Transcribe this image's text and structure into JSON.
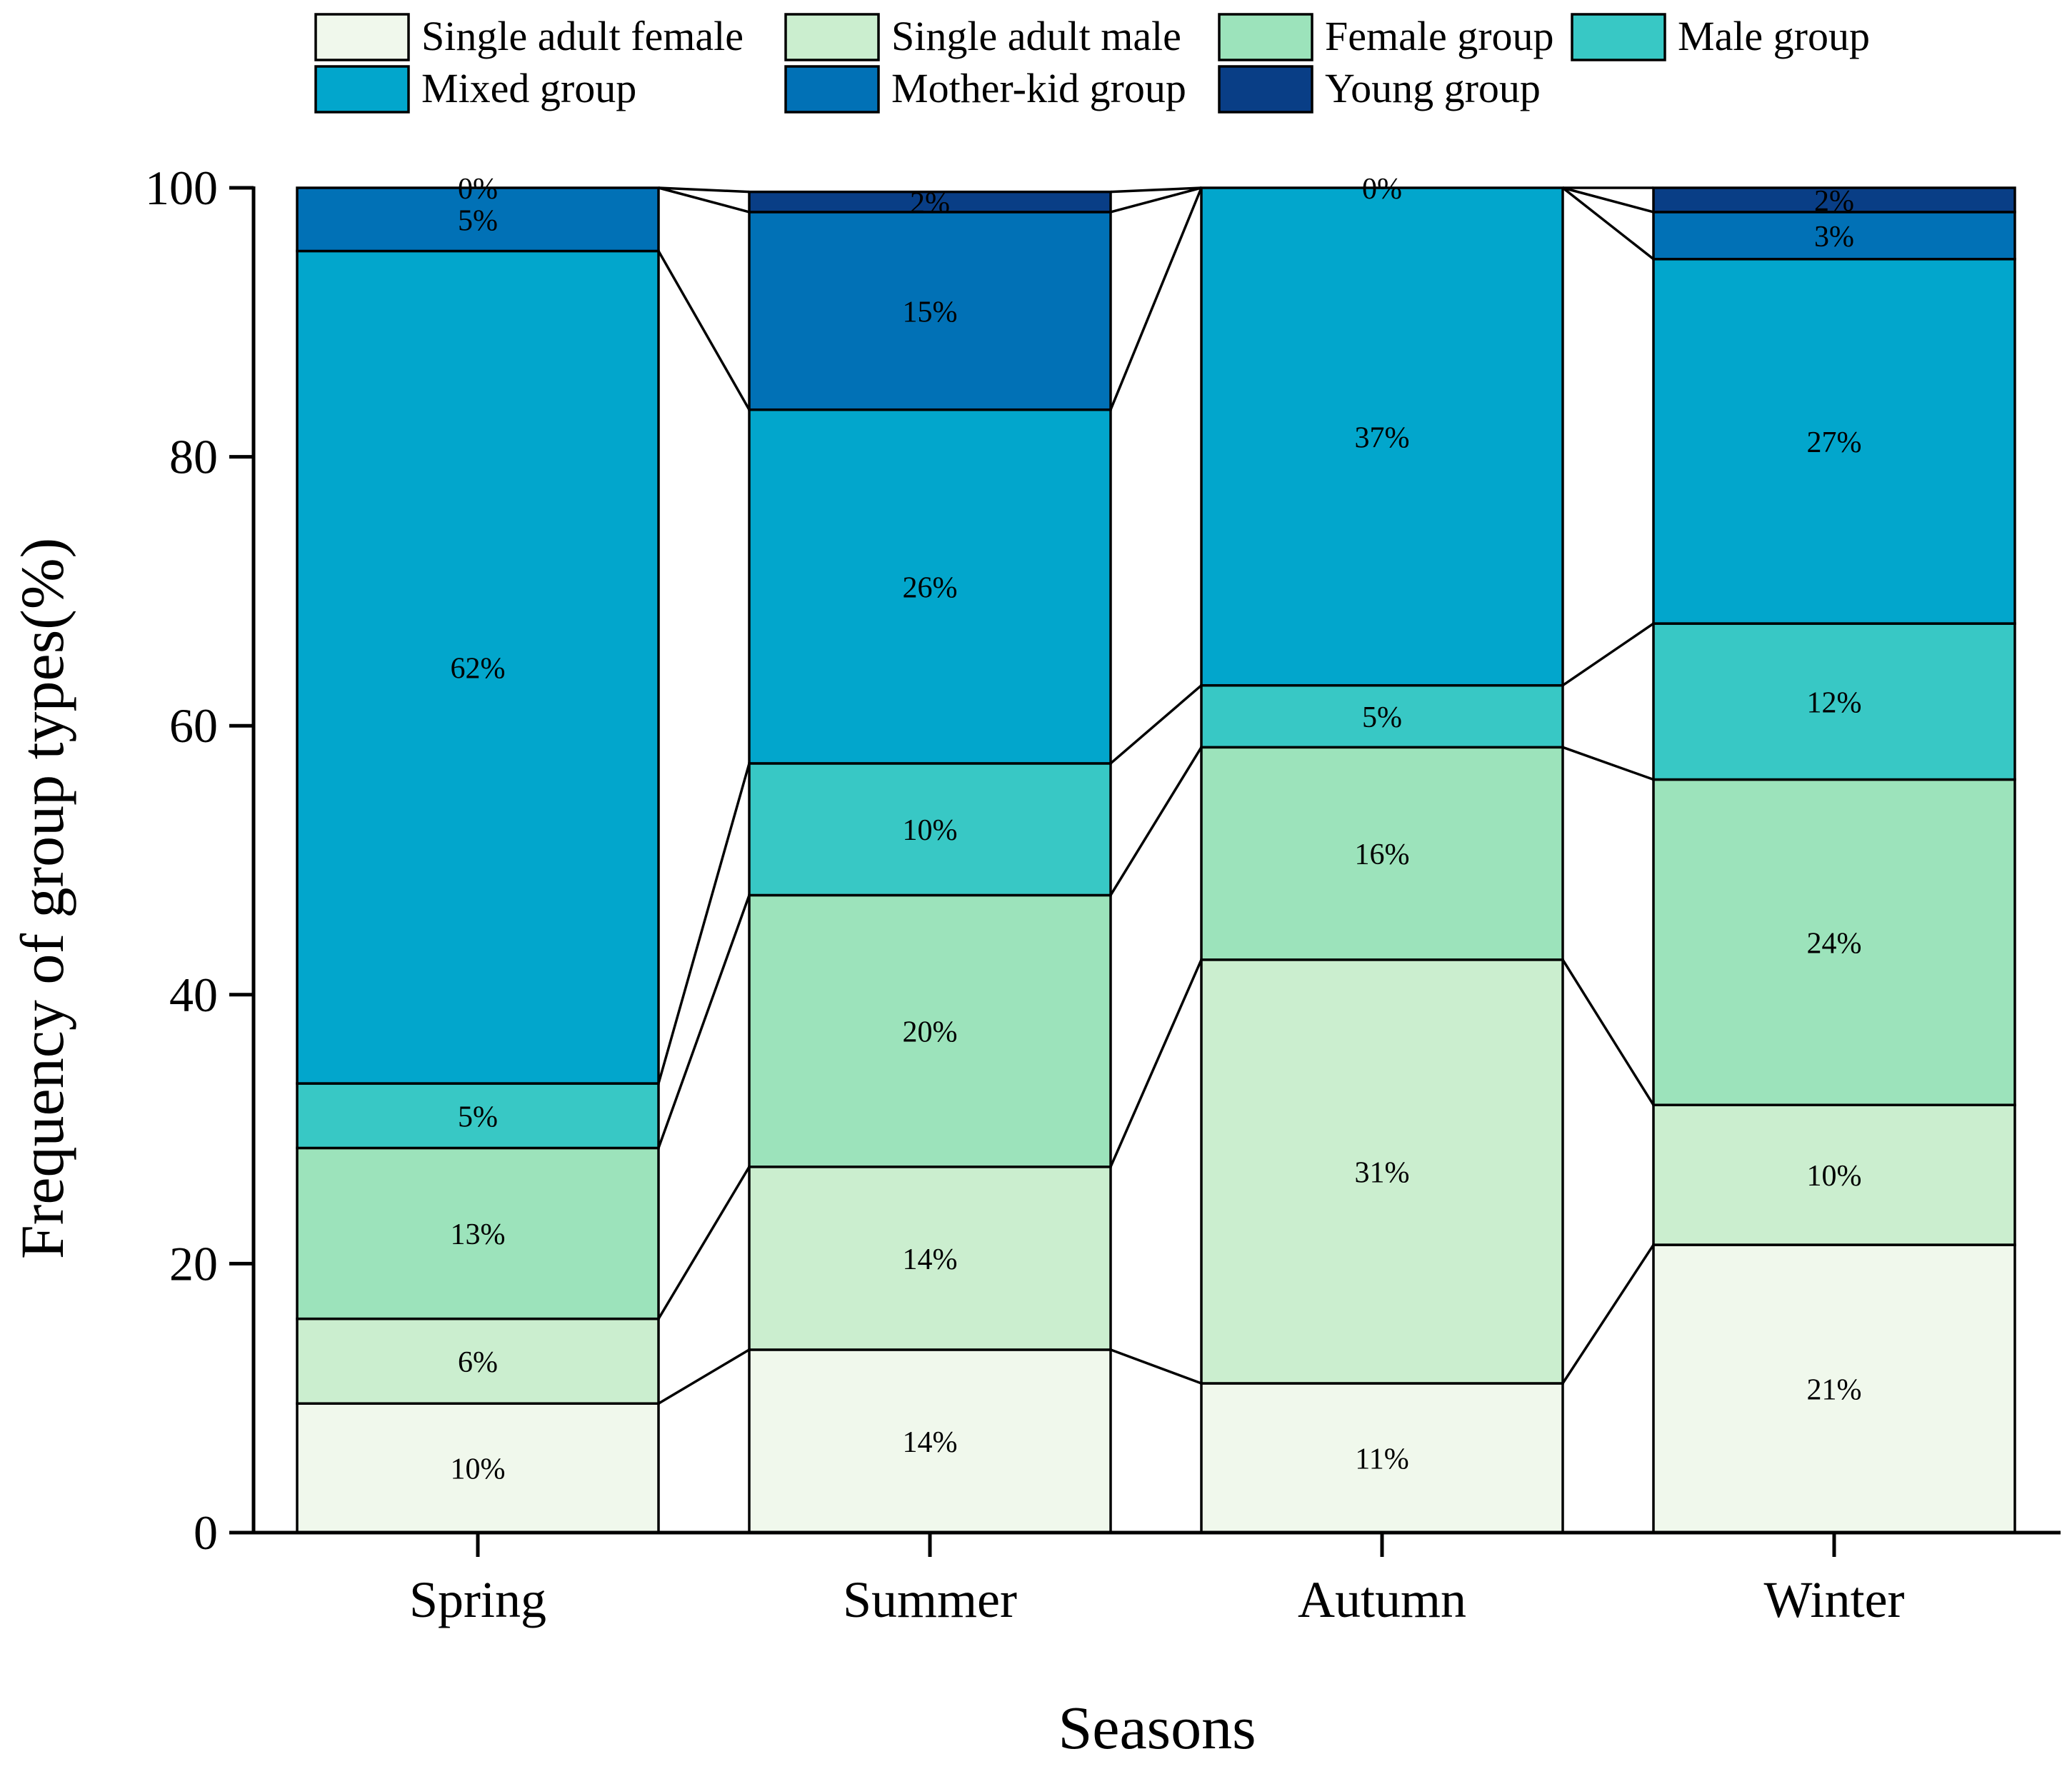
{
  "chart_data": {
    "type": "bar",
    "stacked": true,
    "title": "",
    "xlabel": "Seasons",
    "ylabel": "Frequency of group types(%)",
    "ylim": [
      0,
      100
    ],
    "yticks": [
      0,
      20,
      40,
      60,
      80,
      100
    ],
    "ytick_labels": [
      "0",
      "20",
      "40",
      "60",
      "80",
      "100"
    ],
    "categories": [
      "Spring",
      "Summer",
      "Autumn",
      "Winter"
    ],
    "grid": false,
    "legend_position": "top",
    "series": [
      {
        "name": "Single adult female",
        "color": "#f0f8ec",
        "values": [
          9.6,
          13.6,
          11.1,
          21.4
        ],
        "labels": [
          "10%",
          "14%",
          "11%",
          "21%"
        ]
      },
      {
        "name": "Single adult male",
        "color": "#cbeecf",
        "values": [
          6.3,
          13.6,
          31.5,
          10.4
        ],
        "labels": [
          "6%",
          "14%",
          "31%",
          "10%"
        ]
      },
      {
        "name": "Female group",
        "color": "#9ce3bb",
        "values": [
          12.7,
          20.2,
          15.8,
          24.2
        ],
        "labels": [
          "13%",
          "20%",
          "16%",
          "24%"
        ]
      },
      {
        "name": "Male group",
        "color": "#38c8c5",
        "values": [
          4.8,
          9.8,
          4.6,
          11.6
        ],
        "labels": [
          "5%",
          "10%",
          "5%",
          "12%"
        ]
      },
      {
        "name": "Mixed group",
        "color": "#02a6cc",
        "values": [
          61.9,
          26.3,
          37.0,
          27.1
        ],
        "labels": [
          "62%",
          "26%",
          "37%",
          "27%"
        ]
      },
      {
        "name": "Mother-kid group",
        "color": "#0171b6",
        "values": [
          4.7,
          14.7,
          0.0,
          3.5
        ],
        "labels": [
          "5%",
          "15%",
          "",
          "3%"
        ]
      },
      {
        "name": "Young group",
        "color": "#093e86",
        "values": [
          0.0,
          1.5,
          0.0,
          1.8
        ],
        "labels": [
          "0%",
          "2%",
          "0%",
          "2%"
        ]
      }
    ]
  }
}
